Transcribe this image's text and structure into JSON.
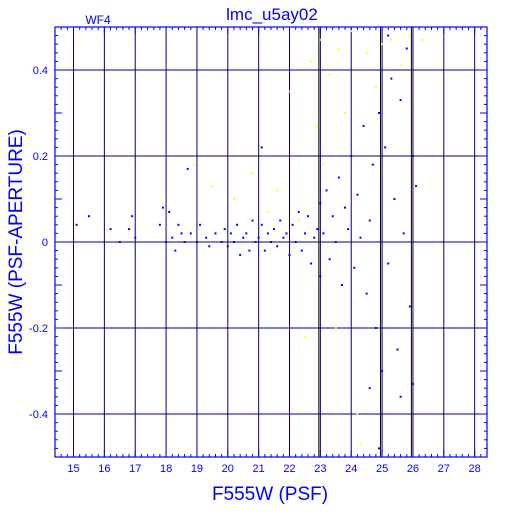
{
  "chart_data": {
    "type": "scatter",
    "title": "lmc_u5ay02",
    "panel_label": "WF4",
    "xlabel": "F555W (PSF)",
    "ylabel": "F555W (PSF-APERTURE)",
    "xlim": [
      14.4,
      28.4
    ],
    "ylim": [
      -0.5,
      0.5
    ],
    "x_ticks": [
      15,
      16,
      17,
      18,
      19,
      20,
      21,
      22,
      23,
      24,
      25,
      26,
      27,
      28
    ],
    "y_ticks": [
      -0.4,
      -0.2,
      0,
      0.2,
      0.4
    ],
    "y_tick_labels": [
      "-0.4",
      "-0.2",
      "0",
      "0.2",
      "0.4"
    ],
    "x_minor_step": 0.2,
    "y_minor_step": 0.02,
    "grid": true,
    "vertical_lines": [
      22.95,
      24.95,
      25.95
    ],
    "colors": {
      "axes": "#0000ff",
      "grid": "#000080",
      "primary_series": "#0000ff",
      "rejected_series": "#ffff00"
    },
    "series": [
      {
        "color": "#0000ff",
        "points": [
          [
            15.1,
            0.04
          ],
          [
            15.5,
            0.06
          ],
          [
            16.2,
            0.03
          ],
          [
            16.5,
            0.0
          ],
          [
            16.8,
            0.03
          ],
          [
            16.9,
            0.06
          ],
          [
            17.0,
            0.01
          ],
          [
            17.8,
            0.04
          ],
          [
            17.9,
            0.08
          ],
          [
            18.0,
            0.0
          ],
          [
            18.1,
            0.07
          ],
          [
            18.2,
            0.01
          ],
          [
            18.3,
            -0.02
          ],
          [
            18.4,
            0.04
          ],
          [
            18.5,
            0.02
          ],
          [
            18.6,
            0.0
          ],
          [
            18.7,
            0.17
          ],
          [
            18.8,
            0.02
          ],
          [
            19.0,
            0.0
          ],
          [
            19.1,
            0.04
          ],
          [
            19.3,
            0.01
          ],
          [
            19.4,
            -0.01
          ],
          [
            19.6,
            0.02
          ],
          [
            19.8,
            0.0
          ],
          [
            19.9,
            0.03
          ],
          [
            20.0,
            -0.01
          ],
          [
            20.1,
            0.02
          ],
          [
            20.2,
            0.0
          ],
          [
            20.3,
            0.04
          ],
          [
            20.4,
            -0.03
          ],
          [
            20.5,
            0.01
          ],
          [
            20.6,
            0.02
          ],
          [
            20.7,
            -0.02
          ],
          [
            20.8,
            0.05
          ],
          [
            20.9,
            0.0
          ],
          [
            21.0,
            0.01
          ],
          [
            21.1,
            0.04
          ],
          [
            21.1,
            0.22
          ],
          [
            21.2,
            -0.02
          ],
          [
            21.3,
            0.02
          ],
          [
            21.4,
            0.0
          ],
          [
            21.5,
            0.03
          ],
          [
            21.6,
            -0.01
          ],
          [
            21.7,
            0.05
          ],
          [
            21.8,
            0.01
          ],
          [
            21.9,
            0.02
          ],
          [
            22.0,
            -0.03
          ],
          [
            22.1,
            0.04
          ],
          [
            22.2,
            0.0
          ],
          [
            22.3,
            0.07
          ],
          [
            22.4,
            -0.02
          ],
          [
            22.5,
            0.02
          ],
          [
            22.6,
            0.06
          ],
          [
            22.7,
            -0.05
          ],
          [
            22.8,
            0.01
          ],
          [
            22.9,
            0.03
          ],
          [
            23.0,
            0.09
          ],
          [
            23.0,
            -0.08
          ],
          [
            23.1,
            0.02
          ],
          [
            23.2,
            0.12
          ],
          [
            23.3,
            -0.04
          ],
          [
            23.4,
            0.06
          ],
          [
            23.5,
            0.0
          ],
          [
            23.6,
            0.15
          ],
          [
            23.7,
            -0.1
          ],
          [
            23.8,
            0.08
          ],
          [
            23.9,
            0.03
          ],
          [
            24.0,
            0.2
          ],
          [
            24.1,
            -0.06
          ],
          [
            24.2,
            0.11
          ],
          [
            24.3,
            0.01
          ],
          [
            24.4,
            0.27
          ],
          [
            24.5,
            -0.12
          ],
          [
            24.6,
            0.05
          ],
          [
            24.7,
            0.18
          ],
          [
            24.8,
            -0.2
          ],
          [
            24.9,
            0.3
          ],
          [
            25.0,
            -0.3
          ],
          [
            25.1,
            0.22
          ],
          [
            25.2,
            -0.05
          ],
          [
            25.3,
            0.38
          ],
          [
            25.4,
            0.1
          ],
          [
            25.5,
            -0.25
          ],
          [
            25.6,
            0.33
          ],
          [
            25.7,
            0.02
          ],
          [
            25.8,
            0.45
          ],
          [
            25.9,
            -0.15
          ],
          [
            26.0,
            0.2
          ],
          [
            26.1,
            0.13
          ],
          [
            26.0,
            -0.33
          ],
          [
            25.6,
            -0.36
          ],
          [
            25.2,
            0.48
          ],
          [
            24.6,
            -0.34
          ],
          [
            24.9,
            -0.48
          ]
        ]
      },
      {
        "color": "#ffff00",
        "points": [
          [
            18.9,
            0.18
          ],
          [
            19.5,
            0.13
          ],
          [
            20.2,
            0.1
          ],
          [
            20.8,
            0.16
          ],
          [
            21.3,
            0.07
          ],
          [
            21.6,
            0.12
          ],
          [
            22.0,
            0.35
          ],
          [
            22.3,
            0.05
          ],
          [
            22.5,
            -0.22
          ],
          [
            22.7,
            0.42
          ],
          [
            22.9,
            0.27
          ],
          [
            23.1,
            0.18
          ],
          [
            23.3,
            0.39
          ],
          [
            23.5,
            -0.2
          ],
          [
            23.6,
            0.45
          ],
          [
            23.8,
            0.3
          ],
          [
            24.0,
            0.49
          ],
          [
            24.2,
            -0.4
          ],
          [
            24.5,
            0.44
          ],
          [
            24.8,
            0.36
          ],
          [
            25.0,
            0.46
          ],
          [
            25.3,
            0.47
          ],
          [
            25.6,
            0.41
          ],
          [
            25.9,
            0.48
          ],
          [
            26.3,
            0.47
          ],
          [
            24.3,
            -0.47
          ],
          [
            23.0,
            0.47
          ]
        ]
      }
    ]
  }
}
